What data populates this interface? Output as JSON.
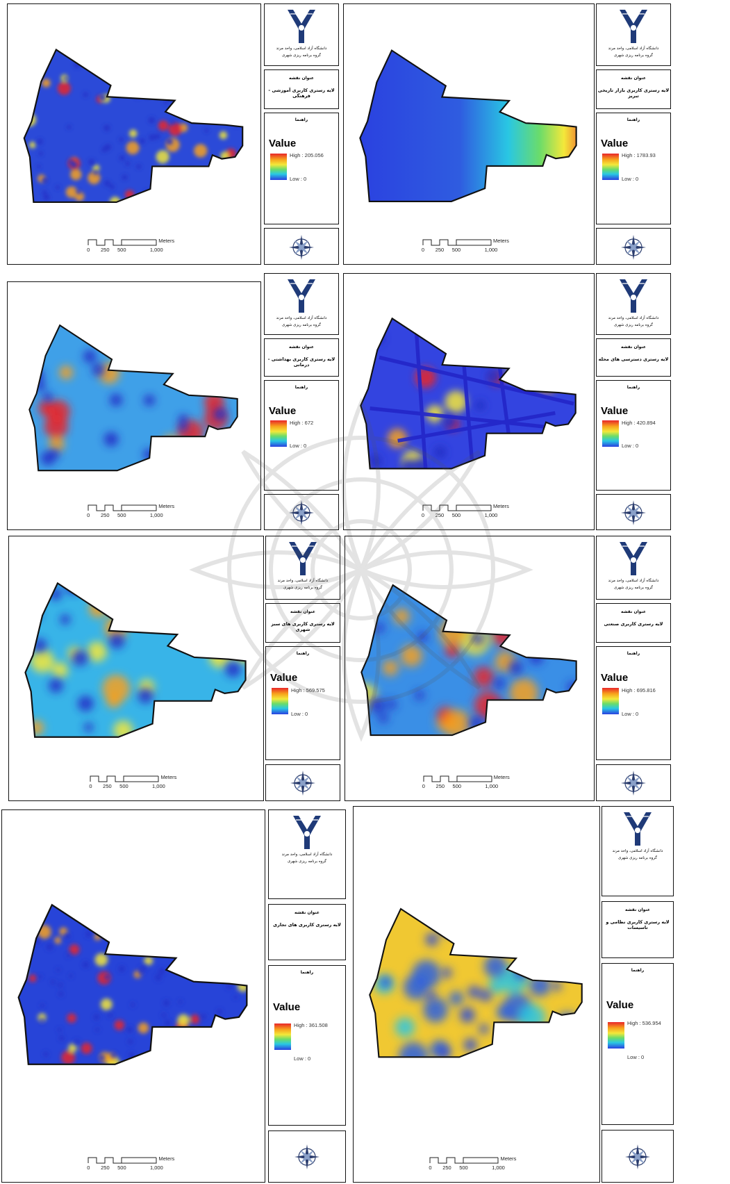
{
  "colors": {
    "ramp": [
      "#e8262a",
      "#f7a11c",
      "#f4e83a",
      "#6bdc6a",
      "#29c7e3",
      "#2a3fe0"
    ],
    "logo": "#1f3a78",
    "frame": "#111111"
  },
  "common": {
    "university": "دانشگاه آزاد اسلامی، واحد مرند",
    "department": "گروه برنامه ریزی شهری",
    "title_heading": "عنوان نقشه",
    "legend_heading": "راهنما",
    "legend_value": "Value",
    "low_label": "Low : 0",
    "scale_ticks": [
      "0",
      "250",
      "500",
      "1,000"
    ],
    "scale_unit": "Meters",
    "logo_icon": "university-logo-icon",
    "north_icon": "north-arrow-compass-icon"
  },
  "panels": [
    {
      "title": "لایه رستری کاربری آموزشی - فرهنگی",
      "high": "High : 205.056"
    },
    {
      "title": "لایه رستری کاربری بازار تاریخی تبریز",
      "high": "High : 1783.93"
    },
    {
      "title": "لایه رستری کاربری بهداشتی - درمانی",
      "high": "High : 672"
    },
    {
      "title": "لایه رستری دسترسی های محله",
      "high": "High : 420.894"
    },
    {
      "title": "لایه رستری کاربری های سبز شهری",
      "high": "High : 569.575"
    },
    {
      "title": "لایه رستری کاربری صنعتی",
      "high": "High : 695.816"
    },
    {
      "title": "لایه رستری کاربری های تجاری",
      "high": "High : 361.508"
    },
    {
      "title": "لایه رستری کاربری نظامی و تاسیسات",
      "high": "High : 536.954"
    }
  ]
}
